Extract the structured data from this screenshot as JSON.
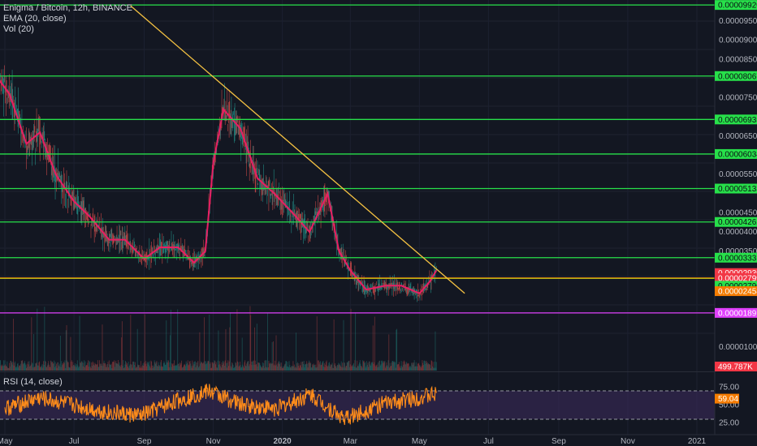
{
  "header": {
    "symbol": "Enigma / Bitcoin, 12h, BINANCE",
    "ema_label": "EMA (20, close)",
    "vol_label": "Vol (20)",
    "rsi_label": "RSI (14, close)"
  },
  "colors": {
    "background": "#131722",
    "green_line": "#27e04a",
    "orange_line": "#ff9800",
    "trend_line": "#f5c242",
    "magenta_line": "#e040fb",
    "price_up": "#26a69a",
    "price_down": "#ef5350",
    "ema": "#e91e63",
    "rsi_line": "#ff8c1a",
    "rsi_band": "#3b2a5a",
    "tag_red": "#f23645",
    "tag_orange": "#f57c00"
  },
  "chart_data": [
    {
      "type": "line",
      "title": "Enigma / Bitcoin, 12h, BINANCE",
      "x_tick_labels": [
        "May",
        "Jul",
        "Sep",
        "Nov",
        "2020",
        "Mar",
        "May",
        "Jul",
        "Sep",
        "Nov",
        "2021"
      ],
      "y_tick_labels": [
        "0.00009500",
        "0.00009000",
        "0.00008500",
        "0.00007500",
        "0.00006500",
        "0.00005500",
        "0.00004500",
        "0.00004000",
        "0.00003500",
        "0.00001000"
      ],
      "ylim": [
        6.5e-06,
        9.9e-06
      ],
      "series": [
        {
          "label": "EMA (20, close)",
          "x": [
            "2019-04-25",
            "2019-05-05",
            "2019-05-20",
            "2019-06-01",
            "2019-06-15",
            "2019-07-01",
            "2019-07-15",
            "2019-08-01",
            "2019-08-15",
            "2019-09-01",
            "2019-09-15",
            "2019-10-01",
            "2019-10-15",
            "2019-10-25",
            "2019-11-01",
            "2019-11-10",
            "2019-11-25",
            "2019-12-10",
            "2019-12-25",
            "2020-01-10",
            "2020-01-25",
            "2020-02-10",
            "2020-02-20",
            "2020-03-01",
            "2020-03-15",
            "2020-04-01",
            "2020-04-15",
            "2020-05-01",
            "2020-05-10",
            "2020-05-16"
          ],
          "values": [
            8e-05,
            7.6e-05,
            6.3e-05,
            6.6e-05,
            5.5e-05,
            4.8e-05,
            4.4e-05,
            3.8e-05,
            3.8e-05,
            3.3e-05,
            3.6e-05,
            3.6e-05,
            3.2e-05,
            3.5e-05,
            5.8e-05,
            7.2e-05,
            6.7e-05,
            5.4e-05,
            5e-05,
            4.5e-05,
            4e-05,
            5e-05,
            3.5e-05,
            3e-05,
            2.5e-05,
            2.6e-05,
            2.6e-05,
            2.4e-05,
            2.7e-05,
            3e-05
          ]
        }
      ],
      "horizontal_levels": [
        {
          "price": "0.00009920",
          "color": "green"
        },
        {
          "price": "0.00008067",
          "color": "green"
        },
        {
          "price": "0.00006935",
          "color": "green"
        },
        {
          "price": "0.00006034",
          "color": "green"
        },
        {
          "price": "0.00005133",
          "color": "green"
        },
        {
          "price": "0.00004262",
          "color": "green"
        },
        {
          "price": "0.00003331",
          "color": "green"
        },
        {
          "price": "0.00002790",
          "color": "green"
        },
        {
          "price": "0.00002799",
          "color": "orange"
        },
        {
          "price": "0.00001891",
          "color": "magenta"
        }
      ],
      "price_tags": [
        {
          "text": "0.00002930",
          "color": "red"
        },
        {
          "text": "01:02:37",
          "color": "dark"
        },
        {
          "text": "0.00002799",
          "color": "red"
        },
        {
          "text": "0.00002790",
          "color": "green"
        },
        {
          "text": "0.00002458",
          "color": "orange"
        },
        {
          "text": "0.00001891",
          "color": "magenta"
        },
        {
          "text": "499.787K",
          "color": "red"
        }
      ],
      "trendline": {
        "from": {
          "x": "2019-08-20",
          "y": 9.9e-05
        },
        "to": {
          "x": "2020-06-10",
          "y": 2.4e-05
        }
      }
    },
    {
      "type": "line",
      "title": "RSI (14, close)",
      "y_tick_labels": [
        "75.00",
        "50.00",
        "25.00"
      ],
      "ylim": [
        18,
        85
      ],
      "band": [
        30,
        70
      ],
      "current_value": "59.04",
      "series": [
        {
          "label": "RSI (14, close)",
          "x": [
            "2019-05",
            "2019-06",
            "2019-07",
            "2019-08",
            "2019-09",
            "2019-10",
            "2019-11",
            "2019-12",
            "2020-01",
            "2020-02",
            "2020-03",
            "2020-04",
            "2020-05"
          ],
          "values": [
            45,
            60,
            50,
            40,
            35,
            55,
            70,
            50,
            45,
            65,
            30,
            50,
            59
          ]
        }
      ]
    }
  ]
}
